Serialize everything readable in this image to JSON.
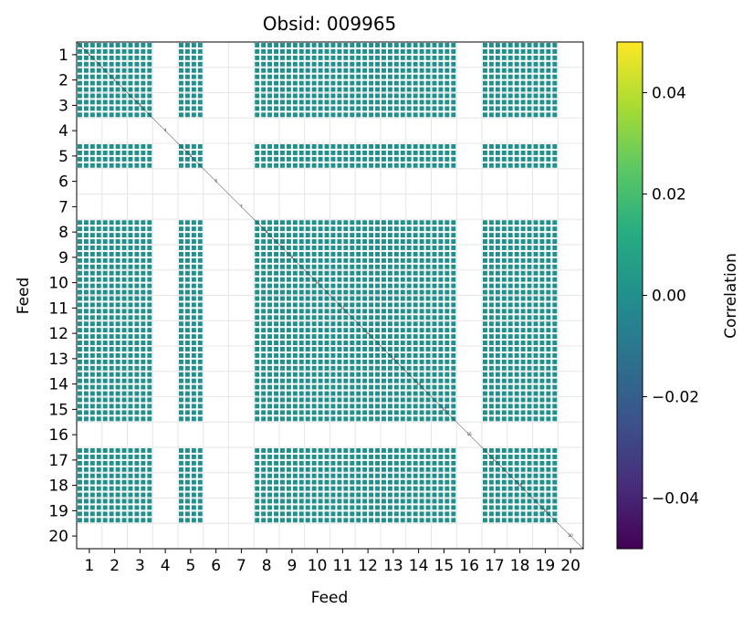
{
  "chart_data": {
    "type": "heatmap",
    "title": "Obsid: 009965",
    "xlabel": "Feed",
    "ylabel": "Feed",
    "x_ticks": [
      "1",
      "2",
      "3",
      "4",
      "5",
      "6",
      "7",
      "8",
      "9",
      "10",
      "11",
      "12",
      "13",
      "14",
      "15",
      "16",
      "17",
      "18",
      "19",
      "20"
    ],
    "y_ticks": [
      "1",
      "2",
      "3",
      "4",
      "5",
      "6",
      "7",
      "8",
      "9",
      "10",
      "11",
      "12",
      "13",
      "14",
      "15",
      "16",
      "17",
      "18",
      "19",
      "20"
    ],
    "colorbar": {
      "label": "Correlation",
      "range": [
        -0.05,
        0.05
      ],
      "ticks": [
        "0.04",
        "0.02",
        "0.00",
        "−0.02",
        "−0.04"
      ],
      "tick_values": [
        0.04,
        0.02,
        0.0,
        -0.02,
        -0.04
      ],
      "colormap": "viridis"
    },
    "cell_value": 0.0,
    "cell_color": "#21908d",
    "active_feeds": [
      1,
      2,
      3,
      5,
      8,
      9,
      10,
      11,
      12,
      13,
      14,
      15,
      17,
      18,
      19
    ],
    "inactive_feeds": [
      4,
      6,
      7,
      16,
      20
    ],
    "diagonal_labels": [
      "1",
      "2",
      "3",
      "4",
      "5",
      "6",
      "7",
      "8",
      "9",
      "10",
      "11",
      "12",
      "13",
      "14",
      "15",
      "16",
      "17",
      "18",
      "19",
      "20"
    ],
    "blocks_per_cell": 4,
    "grid": true
  }
}
